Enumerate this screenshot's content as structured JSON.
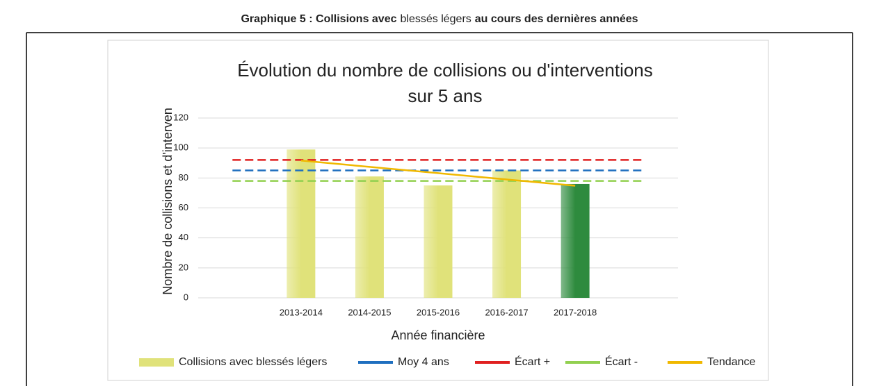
{
  "heading": [
    {
      "text": "Graphique 5 : Collisions avec",
      "bold": true
    },
    {
      "text": "blessés légers",
      "bold": false
    },
    {
      "text": "au cours des dernières années",
      "bold": true
    }
  ],
  "chart_data": {
    "type": "bar",
    "title_lines": [
      "Évolution du nombre de collisions ou d'interventions",
      "sur 5 ans"
    ],
    "y_label": "Nombre de collisions et d'interven",
    "x_label": "Année financière",
    "categories": [
      null,
      "2013-2014",
      "2014-2015",
      "2015-2016",
      "2016-2017",
      "2017-2018",
      null
    ],
    "series": [
      {
        "name": "Collisions avec blessés légers",
        "kind": "bar",
        "color": "#e0e27a",
        "colors": [
          null,
          "#e0e27a",
          "#e0e27a",
          "#e0e27a",
          "#e0e27a",
          "#2e8b3e",
          null
        ],
        "values": [
          null,
          99,
          81,
          75,
          85,
          76,
          null
        ]
      },
      {
        "name": "Moy 4 ans",
        "kind": "line",
        "dash": true,
        "color": "#1f6fbf",
        "values": [
          85,
          85,
          85,
          85,
          85,
          85,
          85
        ]
      },
      {
        "name": "Écart +",
        "kind": "line",
        "dash": true,
        "color": "#e02020",
        "values": [
          92,
          92,
          92,
          92,
          92,
          92,
          92
        ]
      },
      {
        "name": "Écart -",
        "kind": "line",
        "dash": true,
        "color": "#92d050",
        "values": [
          78,
          78,
          78,
          78,
          78,
          78,
          78
        ]
      },
      {
        "name": "Tendance",
        "kind": "line",
        "dash": false,
        "color": "#f0b800",
        "values": [
          null,
          91.6,
          87.4,
          83.2,
          79,
          74.8,
          null
        ]
      }
    ],
    "ylim": [
      0,
      120
    ],
    "yticks": [
      0,
      20,
      40,
      60,
      80,
      100,
      120
    ],
    "grid": true,
    "legend": "bottom"
  }
}
